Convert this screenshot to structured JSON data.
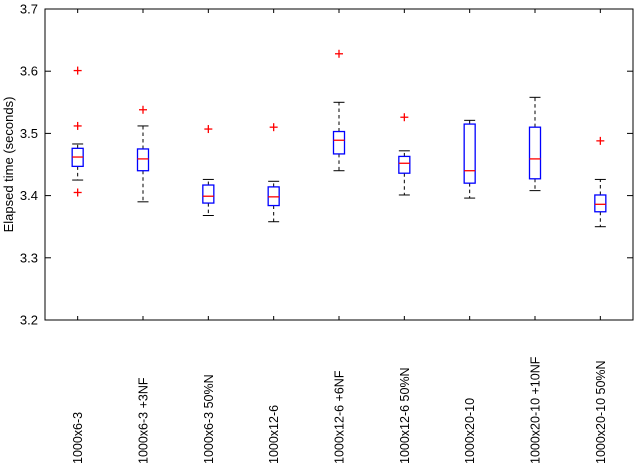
{
  "figure": {
    "ylabel": "Elapsed time (seconds)"
  },
  "chart_data": {
    "type": "boxplot",
    "title": "",
    "xlabel": "",
    "ylabel": "Elapsed time (seconds)",
    "ylim": [
      3.2,
      3.7
    ],
    "ytick_labels": [
      "3.2",
      "3.3",
      "3.4",
      "3.5",
      "3.6",
      "3.7"
    ],
    "grid": false,
    "legend": "none",
    "categories": [
      "1000x6-3",
      "1000x6-3 +3NF",
      "1000x6-3 50%N",
      "1000x12-6",
      "1000x12-6 +6NF",
      "1000x12-6 50%N",
      "1000x20-10",
      "1000x20-10 +10NF",
      "1000x20-10 50%N"
    ],
    "boxes": [
      {
        "label": "1000x6-3",
        "whisker_low": 3.425,
        "q1": 3.447,
        "median": 3.462,
        "q3": 3.476,
        "whisker_high": 3.483,
        "outliers": [
          3.405,
          3.512,
          3.601
        ]
      },
      {
        "label": "1000x6-3 +3NF",
        "whisker_low": 3.39,
        "q1": 3.44,
        "median": 3.459,
        "q3": 3.475,
        "whisker_high": 3.512,
        "outliers": [
          3.538
        ]
      },
      {
        "label": "1000x6-3 50%N",
        "whisker_low": 3.368,
        "q1": 3.388,
        "median": 3.399,
        "q3": 3.417,
        "whisker_high": 3.426,
        "outliers": [
          3.507
        ]
      },
      {
        "label": "1000x12-6",
        "whisker_low": 3.358,
        "q1": 3.384,
        "median": 3.398,
        "q3": 3.414,
        "whisker_high": 3.423,
        "outliers": [
          3.51
        ]
      },
      {
        "label": "1000x12-6 +6NF",
        "whisker_low": 3.44,
        "q1": 3.467,
        "median": 3.489,
        "q3": 3.503,
        "whisker_high": 3.55,
        "outliers": [
          3.628
        ]
      },
      {
        "label": "1000x12-6 50%N",
        "whisker_low": 3.401,
        "q1": 3.436,
        "median": 3.452,
        "q3": 3.463,
        "whisker_high": 3.472,
        "outliers": [
          3.526
        ]
      },
      {
        "label": "1000x20-10",
        "whisker_low": 3.396,
        "q1": 3.42,
        "median": 3.44,
        "q3": 3.515,
        "whisker_high": 3.521,
        "outliers": []
      },
      {
        "label": "1000x20-10 +10NF",
        "whisker_low": 3.408,
        "q1": 3.427,
        "median": 3.459,
        "q3": 3.51,
        "whisker_high": 3.558,
        "outliers": []
      },
      {
        "label": "1000x20-10 50%N",
        "whisker_low": 3.35,
        "q1": 3.374,
        "median": 3.386,
        "q3": 3.401,
        "whisker_high": 3.426,
        "outliers": [
          3.488
        ]
      }
    ],
    "colors": {
      "box": "#0000ff",
      "median": "#ff0000",
      "whisker": "#000000",
      "cap": "#000000",
      "outlier": "#ff0000",
      "axis": "#000000",
      "background": "#ffffff"
    }
  }
}
